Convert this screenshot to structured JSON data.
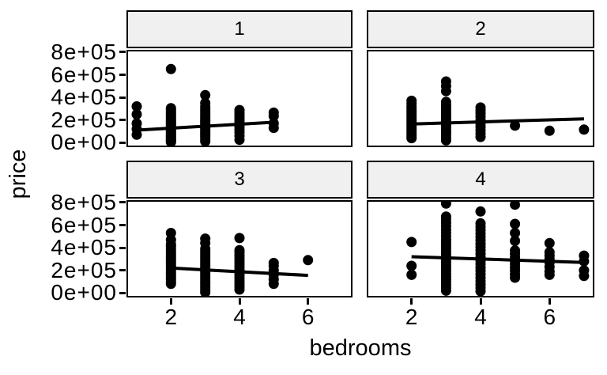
{
  "chart_data": {
    "type": "scatter",
    "title": "",
    "xlabel": "bedrooms",
    "ylabel": "price",
    "grid": false,
    "legend": false,
    "xlim": [
      0.7,
      7.3
    ],
    "ylim": [
      -40000,
      820000
    ],
    "x_ticks": [
      2,
      4,
      6
    ],
    "x_tick_labels": [
      "2",
      "4",
      "6"
    ],
    "y_ticks": [
      0,
      200000,
      400000,
      600000,
      800000
    ],
    "y_tick_labels": [
      "0e+00",
      "2e+05",
      "4e+05",
      "6e+05",
      "8e+05"
    ],
    "colors": {
      "point": "#000000",
      "trend": "#000000",
      "strip_fill": "#F0F0F0",
      "border": "#000000"
    },
    "facets": [
      {
        "label": "1",
        "trend": {
          "x1": 1,
          "y1": 110000,
          "x2": 5,
          "y2": 180000
        },
        "points": [
          [
            1,
            70000
          ],
          [
            1,
            120000
          ],
          [
            1,
            170000
          ],
          [
            1,
            250000
          ],
          [
            1,
            320000
          ],
          [
            2,
            650000
          ],
          [
            2,
            5000
          ],
          [
            2,
            15000
          ],
          [
            2,
            25000
          ],
          [
            2,
            35000
          ],
          [
            2,
            45000
          ],
          [
            2,
            55000
          ],
          [
            2,
            65000
          ],
          [
            2,
            78000
          ],
          [
            2,
            90000
          ],
          [
            2,
            102000
          ],
          [
            2,
            114000
          ],
          [
            2,
            126000
          ],
          [
            2,
            138000
          ],
          [
            2,
            150000
          ],
          [
            2,
            162000
          ],
          [
            2,
            174000
          ],
          [
            2,
            186000
          ],
          [
            2,
            198000
          ],
          [
            2,
            210000
          ],
          [
            2,
            225000
          ],
          [
            2,
            240000
          ],
          [
            2,
            255000
          ],
          [
            2,
            270000
          ],
          [
            2,
            288000
          ],
          [
            2,
            305000
          ],
          [
            3,
            420000
          ],
          [
            3,
            350000
          ],
          [
            3,
            10000
          ],
          [
            3,
            30000
          ],
          [
            3,
            50000
          ],
          [
            3,
            68000
          ],
          [
            3,
            85000
          ],
          [
            3,
            100000
          ],
          [
            3,
            115000
          ],
          [
            3,
            130000
          ],
          [
            3,
            145000
          ],
          [
            3,
            160000
          ],
          [
            3,
            175000
          ],
          [
            3,
            190000
          ],
          [
            3,
            205000
          ],
          [
            3,
            220000
          ],
          [
            3,
            238000
          ],
          [
            3,
            256000
          ],
          [
            3,
            275000
          ],
          [
            3,
            295000
          ],
          [
            3,
            318000
          ],
          [
            4,
            25000
          ],
          [
            4,
            60000
          ],
          [
            4,
            90000
          ],
          [
            4,
            115000
          ],
          [
            4,
            140000
          ],
          [
            4,
            160000
          ],
          [
            4,
            180000
          ],
          [
            4,
            200000
          ],
          [
            4,
            220000
          ],
          [
            4,
            242000
          ],
          [
            4,
            265000
          ],
          [
            4,
            288000
          ],
          [
            5,
            130000
          ],
          [
            5,
            170000
          ],
          [
            5,
            235000
          ],
          [
            5,
            265000
          ]
        ]
      },
      {
        "label": "2",
        "trend": {
          "x1": 2,
          "y1": 165000,
          "x2": 7,
          "y2": 210000
        },
        "points": [
          [
            2,
            40000
          ],
          [
            2,
            60000
          ],
          [
            2,
            80000
          ],
          [
            2,
            100000
          ],
          [
            2,
            120000
          ],
          [
            2,
            140000
          ],
          [
            2,
            160000
          ],
          [
            2,
            180000
          ],
          [
            2,
            200000
          ],
          [
            2,
            220000
          ],
          [
            2,
            240000
          ],
          [
            2,
            260000
          ],
          [
            2,
            280000
          ],
          [
            2,
            300000
          ],
          [
            2,
            320000
          ],
          [
            2,
            345000
          ],
          [
            2,
            370000
          ],
          [
            3,
            540000
          ],
          [
            3,
            500000
          ],
          [
            3,
            455000
          ],
          [
            3,
            20000
          ],
          [
            3,
            45000
          ],
          [
            3,
            70000
          ],
          [
            3,
            92000
          ],
          [
            3,
            114000
          ],
          [
            3,
            136000
          ],
          [
            3,
            158000
          ],
          [
            3,
            180000
          ],
          [
            3,
            202000
          ],
          [
            3,
            224000
          ],
          [
            3,
            246000
          ],
          [
            3,
            268000
          ],
          [
            3,
            290000
          ],
          [
            3,
            312000
          ],
          [
            3,
            335000
          ],
          [
            3,
            360000
          ],
          [
            4,
            50000
          ],
          [
            4,
            80000
          ],
          [
            4,
            110000
          ],
          [
            4,
            140000
          ],
          [
            4,
            170000
          ],
          [
            4,
            200000
          ],
          [
            4,
            230000
          ],
          [
            4,
            260000
          ],
          [
            4,
            285000
          ],
          [
            4,
            310000
          ],
          [
            5,
            150000
          ],
          [
            6,
            105000
          ],
          [
            7,
            115000
          ]
        ]
      },
      {
        "label": "3",
        "trend": {
          "x1": 2,
          "y1": 220000,
          "x2": 6,
          "y2": 155000
        },
        "points": [
          [
            2,
            530000
          ],
          [
            2,
            470000
          ],
          [
            2,
            430000
          ],
          [
            2,
            80000
          ],
          [
            2,
            100000
          ],
          [
            2,
            120000
          ],
          [
            2,
            140000
          ],
          [
            2,
            160000
          ],
          [
            2,
            180000
          ],
          [
            2,
            200000
          ],
          [
            2,
            220000
          ],
          [
            2,
            240000
          ],
          [
            2,
            260000
          ],
          [
            2,
            280000
          ],
          [
            2,
            300000
          ],
          [
            2,
            320000
          ],
          [
            2,
            340000
          ],
          [
            2,
            360000
          ],
          [
            2,
            385000
          ],
          [
            2,
            410000
          ],
          [
            3,
            480000
          ],
          [
            3,
            440000
          ],
          [
            3,
            5000
          ],
          [
            3,
            25000
          ],
          [
            3,
            45000
          ],
          [
            3,
            65000
          ],
          [
            3,
            85000
          ],
          [
            3,
            105000
          ],
          [
            3,
            125000
          ],
          [
            3,
            145000
          ],
          [
            3,
            165000
          ],
          [
            3,
            185000
          ],
          [
            3,
            205000
          ],
          [
            3,
            225000
          ],
          [
            3,
            245000
          ],
          [
            3,
            265000
          ],
          [
            3,
            285000
          ],
          [
            3,
            305000
          ],
          [
            3,
            325000
          ],
          [
            3,
            345000
          ],
          [
            3,
            368000
          ],
          [
            3,
            390000
          ],
          [
            4,
            485000
          ],
          [
            4,
            30000
          ],
          [
            4,
            55000
          ],
          [
            4,
            80000
          ],
          [
            4,
            105000
          ],
          [
            4,
            130000
          ],
          [
            4,
            155000
          ],
          [
            4,
            180000
          ],
          [
            4,
            205000
          ],
          [
            4,
            230000
          ],
          [
            4,
            255000
          ],
          [
            4,
            280000
          ],
          [
            4,
            305000
          ],
          [
            4,
            330000
          ],
          [
            4,
            355000
          ],
          [
            4,
            378000
          ],
          [
            5,
            80000
          ],
          [
            5,
            120000
          ],
          [
            5,
            160000
          ],
          [
            5,
            200000
          ],
          [
            5,
            240000
          ],
          [
            5,
            265000
          ],
          [
            6,
            290000
          ]
        ]
      },
      {
        "label": "4",
        "trend": {
          "x1": 2,
          "y1": 320000,
          "x2": 7,
          "y2": 270000
        },
        "points": [
          [
            2,
            450000
          ],
          [
            2,
            240000
          ],
          [
            2,
            160000
          ],
          [
            3,
            790000
          ],
          [
            3,
            20000
          ],
          [
            3,
            45000
          ],
          [
            3,
            70000
          ],
          [
            3,
            95000
          ],
          [
            3,
            120000
          ],
          [
            3,
            145000
          ],
          [
            3,
            170000
          ],
          [
            3,
            195000
          ],
          [
            3,
            220000
          ],
          [
            3,
            245000
          ],
          [
            3,
            270000
          ],
          [
            3,
            295000
          ],
          [
            3,
            320000
          ],
          [
            3,
            345000
          ],
          [
            3,
            370000
          ],
          [
            3,
            395000
          ],
          [
            3,
            420000
          ],
          [
            3,
            445000
          ],
          [
            3,
            470000
          ],
          [
            3,
            500000
          ],
          [
            3,
            530000
          ],
          [
            3,
            560000
          ],
          [
            3,
            590000
          ],
          [
            3,
            620000
          ],
          [
            3,
            650000
          ],
          [
            3,
            675000
          ],
          [
            4,
            720000
          ],
          [
            4,
            15000
          ],
          [
            4,
            45000
          ],
          [
            4,
            75000
          ],
          [
            4,
            105000
          ],
          [
            4,
            135000
          ],
          [
            4,
            165000
          ],
          [
            4,
            195000
          ],
          [
            4,
            225000
          ],
          [
            4,
            255000
          ],
          [
            4,
            285000
          ],
          [
            4,
            315000
          ],
          [
            4,
            345000
          ],
          [
            4,
            375000
          ],
          [
            4,
            405000
          ],
          [
            4,
            435000
          ],
          [
            4,
            465000
          ],
          [
            4,
            495000
          ],
          [
            4,
            525000
          ],
          [
            4,
            555000
          ],
          [
            4,
            585000
          ],
          [
            4,
            615000
          ],
          [
            5,
            780000
          ],
          [
            5,
            610000
          ],
          [
            5,
            530000
          ],
          [
            5,
            460000
          ],
          [
            5,
            135000
          ],
          [
            5,
            165000
          ],
          [
            5,
            195000
          ],
          [
            5,
            225000
          ],
          [
            5,
            255000
          ],
          [
            5,
            285000
          ],
          [
            5,
            315000
          ],
          [
            5,
            345000
          ],
          [
            5,
            375000
          ],
          [
            6,
            440000
          ],
          [
            6,
            360000
          ],
          [
            6,
            330000
          ],
          [
            6,
            300000
          ],
          [
            6,
            270000
          ],
          [
            6,
            230000
          ],
          [
            6,
            190000
          ],
          [
            6,
            160000
          ],
          [
            7,
            330000
          ],
          [
            7,
            280000
          ],
          [
            7,
            200000
          ],
          [
            7,
            150000
          ]
        ]
      }
    ]
  }
}
